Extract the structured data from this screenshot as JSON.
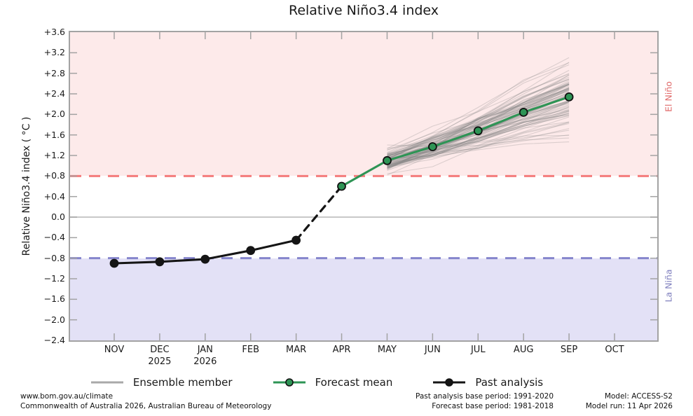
{
  "title": "Relative Niño3.4 index",
  "y_axis": {
    "label": "Relative Niño3.4 index ( °C )",
    "ticks": [
      {
        "label": "+3.6",
        "value": 3.6
      },
      {
        "label": "+3.2",
        "value": 3.2
      },
      {
        "label": "+2.8",
        "value": 2.8
      },
      {
        "label": "+2.4",
        "value": 2.4
      },
      {
        "label": "+2.0",
        "value": 2.0
      },
      {
        "label": "+1.6",
        "value": 1.6
      },
      {
        "label": "+1.2",
        "value": 1.2
      },
      {
        "label": "+0.8",
        "value": 0.8
      },
      {
        "label": "+0.4",
        "value": 0.4
      },
      {
        "label": "0.0",
        "value": 0.0
      },
      {
        "label": "−0.4",
        "value": -0.4
      },
      {
        "label": "−0.8",
        "value": -0.8
      },
      {
        "label": "−1.2",
        "value": -1.2
      },
      {
        "label": "−1.6",
        "value": -1.6
      },
      {
        "label": "−2.0",
        "value": -2.0
      },
      {
        "label": "−2.4",
        "value": -2.4
      }
    ]
  },
  "x_axis": {
    "months": [
      {
        "label": "NOV",
        "year": ""
      },
      {
        "label": "DEC",
        "year": "2025"
      },
      {
        "label": "JAN",
        "year": "2026"
      },
      {
        "label": "FEB",
        "year": ""
      },
      {
        "label": "MAR",
        "year": ""
      },
      {
        "label": "APR",
        "year": ""
      },
      {
        "label": "MAY",
        "year": ""
      },
      {
        "label": "JUN",
        "year": ""
      },
      {
        "label": "JUL",
        "year": ""
      },
      {
        "label": "AUG",
        "year": ""
      },
      {
        "label": "SEP",
        "year": ""
      },
      {
        "label": "OCT",
        "year": ""
      }
    ]
  },
  "band_labels": {
    "el_nino": "El Niño",
    "la_nina": "La Niña"
  },
  "legend": [
    {
      "label": "Ensemble member",
      "key": "ensemble"
    },
    {
      "label": "Forecast mean",
      "key": "forecast"
    },
    {
      "label": "Past analysis",
      "key": "past"
    }
  ],
  "footer": {
    "left_line1": "www.bom.gov.au/climate",
    "left_line2": "Commonwealth of Australia 2026, Australian Bureau of Meteorology",
    "center_line1": "Past analysis base period: 1991-2020",
    "center_line2": "Forecast base period: 1981-2018",
    "right_line1": "Model: ACCESS-S2",
    "right_line2": "Model run: 11 Apr 2026"
  },
  "colors": {
    "el_nino_band": "#fdeaea",
    "la_nina_band": "#e3e1f6",
    "el_nino_threshold": "#f47c7c",
    "la_nina_threshold": "#8585cc",
    "el_nino_label": "#e06a6a",
    "la_nina_label": "#7f7fbe",
    "forecast_mean": "#2e9455",
    "past_analysis": "#151515",
    "ensemble": "#808080",
    "legend_ensemble": "#a9a9a9",
    "zero_line": "#b5b5b5",
    "frame": "#a3a3a3"
  },
  "chart_data": {
    "type": "line",
    "title": "Relative Niño3.4 index",
    "xlabel": "",
    "ylabel": "Relative Niño3.4 index ( °C )",
    "ylim": [
      -2.4,
      3.6
    ],
    "y_tick_step": 0.4,
    "categories": [
      "NOV",
      "DEC",
      "JAN",
      "FEB",
      "MAR",
      "APR",
      "MAY",
      "JUN",
      "JUL",
      "AUG",
      "SEP",
      "OCT"
    ],
    "year_markers": {
      "DEC": "2025",
      "JAN": "2026"
    },
    "grid": false,
    "legend_position": "bottom",
    "zero_line": 0.0,
    "bands": [
      {
        "name": "El Niño",
        "from": 0.8,
        "to": 3.6
      },
      {
        "name": "La Niña",
        "from": -2.4,
        "to": -0.8
      }
    ],
    "thresholds": [
      {
        "name": "El Niño threshold",
        "value": 0.8,
        "style": "dashed"
      },
      {
        "name": "La Niña threshold",
        "value": -0.8,
        "style": "dashed"
      }
    ],
    "series": [
      {
        "name": "Past analysis",
        "style": "solid-dots",
        "x": [
          "NOV",
          "DEC",
          "JAN",
          "FEB",
          "MAR"
        ],
        "values": [
          -0.9,
          -0.87,
          -0.82,
          -0.65,
          -0.45
        ]
      },
      {
        "name": "Past-to-forecast connector",
        "style": "dashed",
        "x": [
          "MAR",
          "APR"
        ],
        "values": [
          -0.45,
          0.6
        ]
      },
      {
        "name": "Forecast mean",
        "style": "solid-dots",
        "x": [
          "APR",
          "MAY",
          "JUN",
          "JUL",
          "AUG",
          "SEP"
        ],
        "values": [
          0.6,
          1.1,
          1.37,
          1.68,
          2.04,
          2.34
        ]
      },
      {
        "name": "Ensemble member",
        "style": "fan",
        "x": [
          "MAY",
          "JUN",
          "JUL",
          "AUG",
          "SEP"
        ],
        "mean_values": [
          1.1,
          1.37,
          1.68,
          2.04,
          2.34
        ],
        "member_count": 90,
        "spread_at_start": 0.29,
        "spread_at_end": 0.82,
        "seed": 42
      }
    ]
  }
}
